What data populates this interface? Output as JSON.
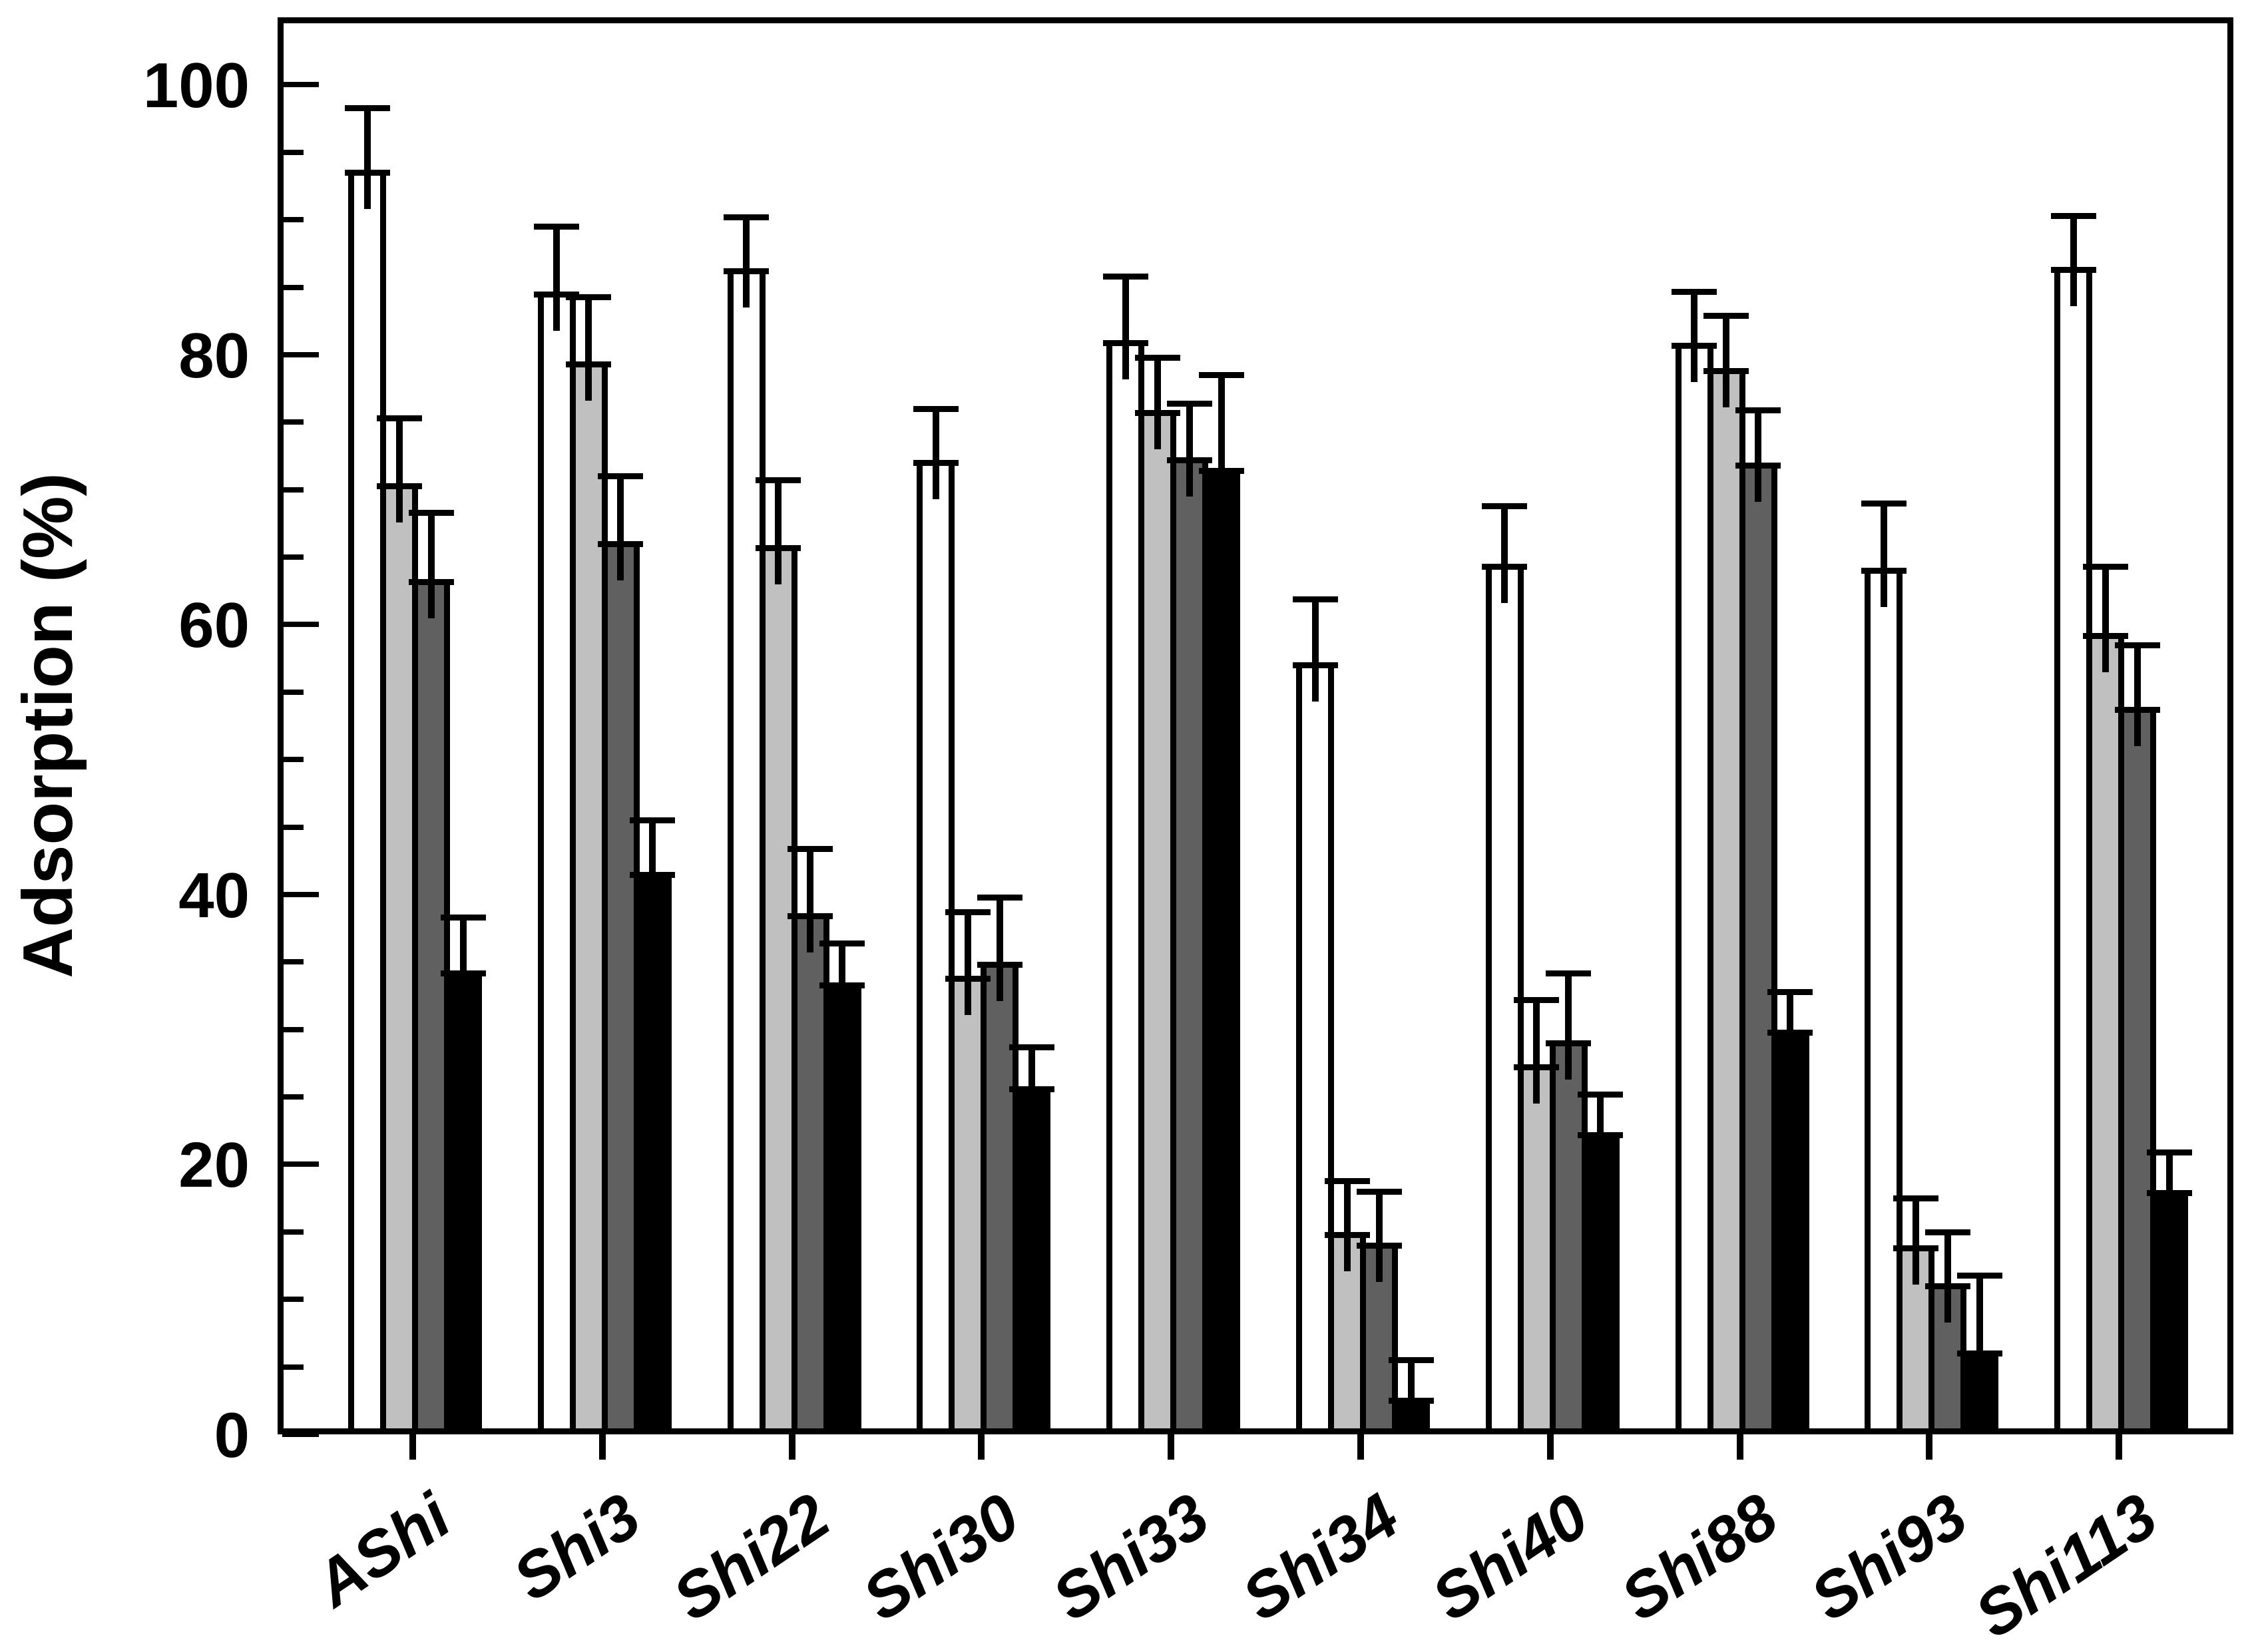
{
  "figure": {
    "background": "#ffffff",
    "axis_color": "#000000"
  },
  "chart_data": {
    "type": "bar",
    "title": "",
    "xlabel": "",
    "ylabel": "Adsorption (%)",
    "ylim": [
      0,
      105
    ],
    "y_major_ticks": [
      0,
      20,
      40,
      60,
      80,
      100
    ],
    "y_tick_labels": [
      "0",
      "20",
      "40",
      "60",
      "80",
      "100"
    ],
    "y_minor_step": 5,
    "grid": false,
    "legend": "none",
    "error_bars": {
      "direction": "upper",
      "caps": "both-ends"
    },
    "bar_outline": "#000000",
    "categories": [
      "AShi",
      "Shi3",
      "Shi22",
      "Shi30",
      "Shi33",
      "Shi34",
      "Shi40",
      "Shi88",
      "Shi93",
      "Shi113"
    ],
    "series": [
      {
        "name": "white",
        "fill": "#ffffff",
        "values": [
          93.5,
          84.5,
          86.2,
          72.0,
          80.9,
          57.0,
          64.3,
          80.7,
          64.0,
          86.3
        ],
        "errors": [
          4.8,
          5.0,
          4.0,
          4.0,
          4.9,
          4.9,
          4.5,
          4.0,
          5.0,
          4.0
        ]
      },
      {
        "name": "light-gray",
        "fill": "#c0c0c0",
        "values": [
          70.3,
          79.3,
          65.7,
          33.8,
          75.7,
          14.8,
          27.2,
          78.8,
          13.8,
          59.2
        ],
        "errors": [
          5.0,
          5.0,
          5.0,
          4.9,
          4.1,
          4.0,
          5.0,
          4.1,
          3.7,
          5.1
        ]
      },
      {
        "name": "dark-gray",
        "fill": "#606060",
        "values": [
          63.2,
          66.0,
          38.4,
          34.8,
          72.2,
          14.0,
          29.0,
          71.8,
          11.0,
          53.7
        ],
        "errors": [
          5.1,
          5.0,
          5.0,
          5.0,
          4.2,
          4.0,
          5.2,
          4.1,
          4.0,
          4.8
        ]
      },
      {
        "name": "black",
        "fill": "#000000",
        "values": [
          34.2,
          41.5,
          33.3,
          25.6,
          71.4,
          2.5,
          22.2,
          29.8,
          6.0,
          17.9
        ],
        "errors": [
          4.1,
          4.0,
          3.1,
          3.1,
          7.1,
          3.0,
          3.0,
          3.0,
          5.8,
          3.0
        ]
      }
    ]
  }
}
